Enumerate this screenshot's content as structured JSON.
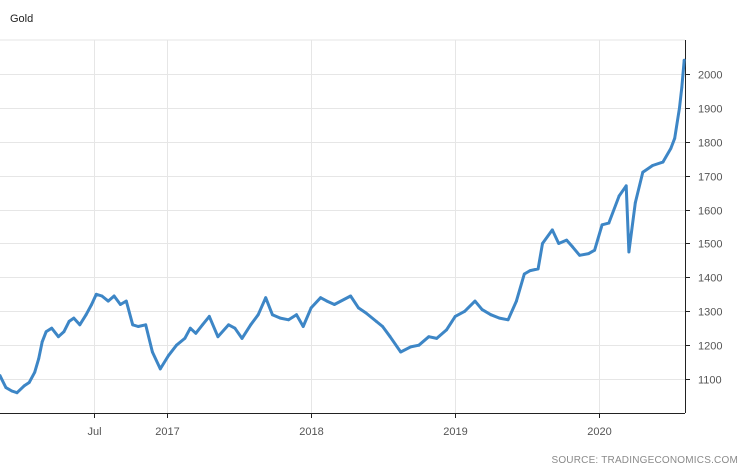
{
  "title": "Gold",
  "source": "SOURCE: TRADINGECONOMICS.COM",
  "colors": {
    "line": "#3d86c6",
    "grid": "#e6e6e6",
    "axis": "#222222"
  },
  "chart_data": {
    "type": "line",
    "title": "Gold",
    "xlabel": "",
    "ylabel": "",
    "x_tick_labels": [
      "Jul",
      "2017",
      "2018",
      "2019",
      "2020"
    ],
    "x_ticks": [
      "2016-07-01",
      "2017-01-01",
      "2018-01-01",
      "2019-01-01",
      "2020-01-01"
    ],
    "y_ticks": [
      1100,
      1200,
      1300,
      1400,
      1500,
      1600,
      1700,
      1800,
      1900,
      2000
    ],
    "ylim": [
      1000,
      2100
    ],
    "xlim": [
      "2015-11-05",
      "2020-08-05"
    ],
    "grid": true,
    "y_axis_side": "right",
    "series": [
      {
        "x": [
          "2015-11-05",
          "2015-11-20",
          "2015-12-05",
          "2015-12-18",
          "2016-01-05",
          "2016-01-18",
          "2016-02-01",
          "2016-02-11",
          "2016-02-20",
          "2016-03-01",
          "2016-03-15",
          "2016-04-01",
          "2016-04-15",
          "2016-04-28",
          "2016-05-10",
          "2016-05-25",
          "2016-06-10",
          "2016-06-24",
          "2016-07-06",
          "2016-07-20",
          "2016-08-05",
          "2016-08-20",
          "2016-09-05",
          "2016-09-20",
          "2016-10-06",
          "2016-10-20",
          "2016-11-08",
          "2016-11-25",
          "2016-12-15",
          "2017-01-05",
          "2017-01-25",
          "2017-02-15",
          "2017-03-01",
          "2017-03-15",
          "2017-04-01",
          "2017-04-18",
          "2017-05-10",
          "2017-06-06",
          "2017-06-22",
          "2017-07-10",
          "2017-08-01",
          "2017-08-20",
          "2017-09-08",
          "2017-09-25",
          "2017-10-15",
          "2017-11-05",
          "2017-11-25",
          "2017-12-12",
          "2018-01-01",
          "2018-01-25",
          "2018-02-10",
          "2018-03-01",
          "2018-04-11",
          "2018-05-01",
          "2018-05-20",
          "2018-06-15",
          "2018-07-01",
          "2018-07-20",
          "2018-08-16",
          "2018-09-10",
          "2018-10-01",
          "2018-10-26",
          "2018-11-15",
          "2018-12-10",
          "2019-01-01",
          "2019-01-25",
          "2019-02-20",
          "2019-03-10",
          "2019-04-01",
          "2019-04-23",
          "2019-05-15",
          "2019-06-05",
          "2019-06-25",
          "2019-07-10",
          "2019-07-30",
          "2019-08-10",
          "2019-09-04",
          "2019-09-20",
          "2019-10-10",
          "2019-10-25",
          "2019-11-12",
          "2019-12-05",
          "2019-12-20",
          "2020-01-08",
          "2020-01-25",
          "2020-02-20",
          "2020-03-09",
          "2020-03-16",
          "2020-04-01",
          "2020-04-20",
          "2020-05-15",
          "2020-06-10",
          "2020-06-30",
          "2020-07-10",
          "2020-07-22",
          "2020-07-28",
          "2020-08-03"
        ],
        "values": [
          1110,
          1075,
          1065,
          1060,
          1080,
          1090,
          1120,
          1160,
          1210,
          1240,
          1250,
          1225,
          1240,
          1270,
          1280,
          1260,
          1290,
          1320,
          1350,
          1345,
          1330,
          1345,
          1320,
          1330,
          1260,
          1255,
          1260,
          1180,
          1130,
          1170,
          1200,
          1220,
          1250,
          1235,
          1260,
          1285,
          1225,
          1260,
          1250,
          1220,
          1260,
          1290,
          1340,
          1290,
          1280,
          1275,
          1290,
          1255,
          1310,
          1340,
          1330,
          1320,
          1345,
          1310,
          1295,
          1270,
          1255,
          1225,
          1180,
          1195,
          1200,
          1225,
          1220,
          1245,
          1285,
          1300,
          1330,
          1305,
          1290,
          1280,
          1275,
          1330,
          1410,
          1420,
          1425,
          1500,
          1540,
          1500,
          1510,
          1490,
          1465,
          1470,
          1480,
          1555,
          1560,
          1640,
          1670,
          1475,
          1620,
          1710,
          1730,
          1740,
          1780,
          1810,
          1900,
          1960,
          2040
        ]
      }
    ]
  }
}
